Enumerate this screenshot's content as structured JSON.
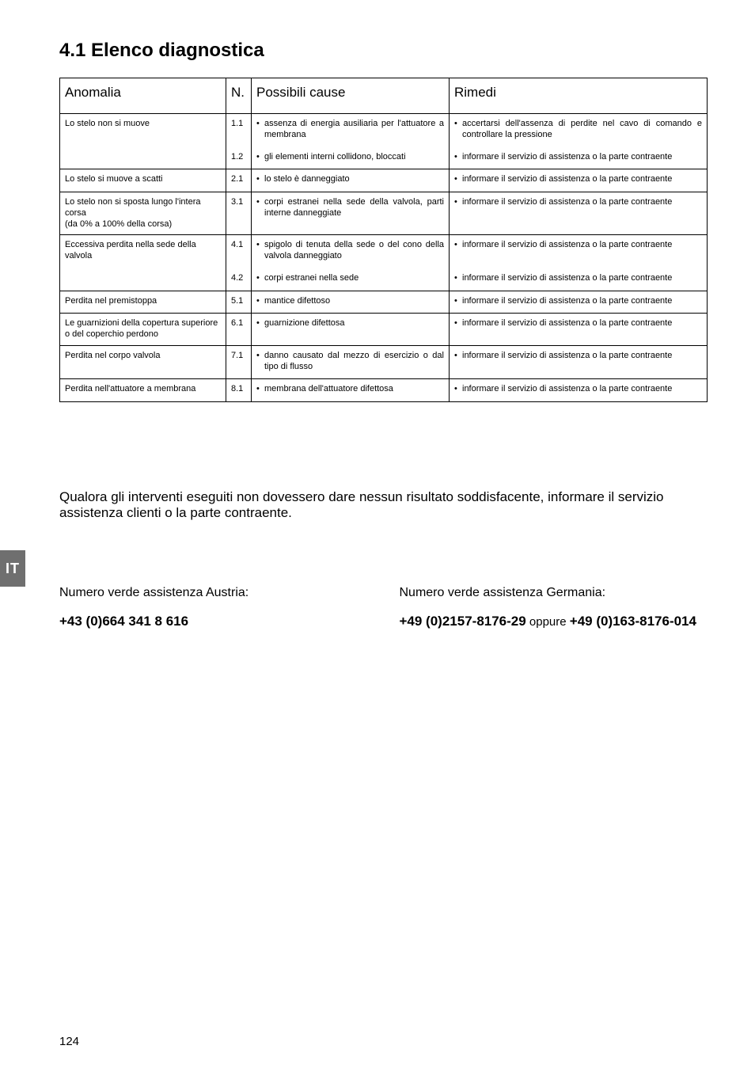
{
  "page": {
    "number": "124",
    "side_tab": "IT"
  },
  "heading": "4.1 Elenco diagnostica",
  "table": {
    "headers": {
      "anomalia": "Anomalia",
      "n": "N.",
      "cause": "Possibili cause",
      "rimedi": "Rimedi"
    },
    "sections": [
      {
        "anomalia": "Lo stelo non si muove",
        "rows": [
          {
            "n": "1.1",
            "cause": [
              "assenza di energia ausiliaria per l'attuatore a membrana"
            ],
            "rimedi": [
              "accertarsi dell'assenza di perdite nel cavo di comando e controllare la pressione"
            ]
          },
          {
            "n": "1.2",
            "cause": [
              "gli elementi interni collidono, bloccati"
            ],
            "rimedi": [
              "informare il servizio di assistenza o la parte contraente"
            ]
          }
        ]
      },
      {
        "anomalia": "Lo stelo si muove a scatti",
        "rows": [
          {
            "n": "2.1",
            "cause": [
              "lo stelo è danneggiato"
            ],
            "rimedi": [
              "informare il servizio di assistenza o la parte contraente"
            ]
          }
        ]
      },
      {
        "anomalia": "Lo stelo non si sposta lungo l'intera corsa\n(da 0% a 100% della corsa)",
        "rows": [
          {
            "n": "3.1",
            "cause": [
              "corpi estranei nella sede della valvola, parti interne danneggiate"
            ],
            "rimedi": [
              "informare il servizio di assistenza o la parte contraente"
            ]
          }
        ]
      },
      {
        "anomalia": "Eccessiva perdita nella sede della valvola",
        "rows": [
          {
            "n": "4.1",
            "cause": [
              "spigolo di tenuta della sede o del cono della valvola danneggiato"
            ],
            "rimedi": [
              "informare il servizio di assistenza o la parte contraente"
            ]
          },
          {
            "n": "4.2",
            "cause": [
              "corpi estranei nella sede"
            ],
            "rimedi": [
              "informare il servizio di assistenza o la parte contraente"
            ]
          }
        ]
      },
      {
        "anomalia": "Perdita nel premistoppa",
        "rows": [
          {
            "n": "5.1",
            "cause": [
              "mantice difettoso"
            ],
            "rimedi": [
              "informare il servizio di assistenza o la parte contraente"
            ]
          }
        ]
      },
      {
        "anomalia": "Le guarnizioni della copertura superiore o del coperchio perdono",
        "rows": [
          {
            "n": "6.1",
            "cause": [
              "guarnizione difettosa"
            ],
            "rimedi": [
              "informare il servizio di assistenza o la parte contraente"
            ]
          }
        ]
      },
      {
        "anomalia": "Perdita nel corpo valvola",
        "rows": [
          {
            "n": "7.1",
            "cause": [
              "danno causato dal mezzo di esercizio o dal tipo di flusso"
            ],
            "rimedi": [
              "informare il servizio di assistenza o la parte contraente"
            ]
          }
        ]
      },
      {
        "anomalia": "Perdita nell'attuatore a membrana",
        "rows": [
          {
            "n": "8.1",
            "cause": [
              "membrana dell'attuatore difettosa"
            ],
            "rimedi": [
              "informare il servizio di assistenza o la parte contraente"
            ]
          }
        ]
      }
    ]
  },
  "note": "Qualora gli interventi eseguiti non dovessero dare nessun risultato soddisfacente, informare il servizio assistenza clienti o la parte contraente.",
  "contacts": {
    "left": {
      "label": "Numero verde assistenza Austria:",
      "phone": "+43 (0)664 341 8 616"
    },
    "right": {
      "label": "Numero verde assistenza Germania:",
      "phone_a": "+49 (0)2157-8176-29",
      "conj": " oppure ",
      "phone_b": "+49 (0)163-8176-014"
    }
  }
}
